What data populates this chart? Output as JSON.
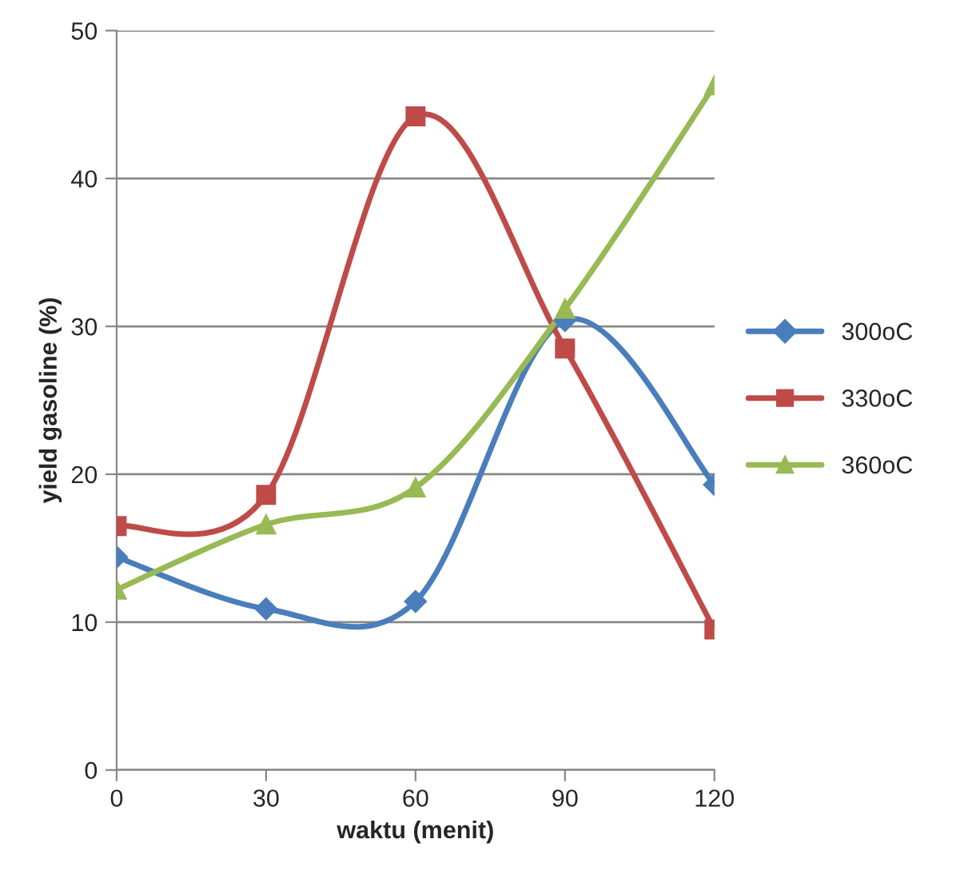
{
  "chart_data": {
    "type": "line",
    "xlabel": "waktu (menit)",
    "ylabel": "yield gasoline (%)",
    "x": [
      0,
      30,
      60,
      90,
      120
    ],
    "series": [
      {
        "name": "300oC",
        "color": "#4a7ebb",
        "marker": "diamond",
        "values": [
          14.4,
          10.9,
          11.4,
          30.4,
          19.3
        ]
      },
      {
        "name": "330oC",
        "color": "#be4b48",
        "marker": "square",
        "values": [
          16.5,
          18.6,
          44.2,
          28.5,
          9.5
        ]
      },
      {
        "name": "360oC",
        "color": "#98b954",
        "marker": "triangle",
        "values": [
          12.2,
          16.6,
          19.1,
          31.2,
          46.3
        ]
      }
    ],
    "xlim": [
      0,
      120
    ],
    "xticks": [
      0,
      30,
      60,
      90,
      120
    ],
    "ylim": [
      0,
      50
    ],
    "yticks": [
      0,
      10,
      20,
      30,
      40,
      50
    ],
    "grid": "y",
    "legend": "right",
    "line_style": "solid"
  }
}
